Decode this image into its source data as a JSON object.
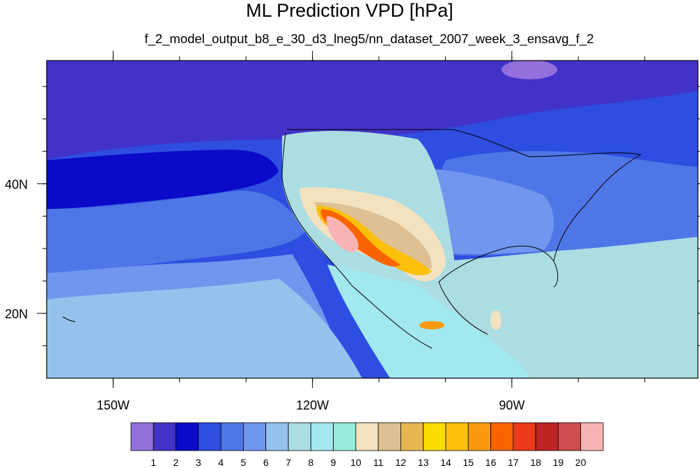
{
  "title": "ML Prediction VPD [hPa]",
  "subtitle": "f_2_model_output_b8_e_30_d3_lneg5/nn_dataset_2007_week_3_ensavg_f_2",
  "map": {
    "lon_range": [
      -160,
      -62
    ],
    "lat_range": [
      10,
      59
    ],
    "lon_ticks": [
      {
        "lon": -150,
        "label": "150W"
      },
      {
        "lon": -120,
        "label": "120W"
      },
      {
        "lon": -90,
        "label": "90W"
      }
    ],
    "lat_ticks": [
      {
        "lat": 40,
        "label": "40N"
      },
      {
        "lat": 20,
        "label": "20N"
      }
    ]
  },
  "colorbar": {
    "colors": [
      "#9370db",
      "#4232c8",
      "#0a0ac8",
      "#2d4ee0",
      "#4e76e6",
      "#7096ee",
      "#94c2ec",
      "#abdde3",
      "#a2e8ef",
      "#96ebda",
      "#f2e2c0",
      "#dec093",
      "#e6b650",
      "#fadc00",
      "#fcc00a",
      "#fb9a10",
      "#fa6400",
      "#ea3a1a",
      "#bd2424",
      "#d04e50",
      "#f8b4b4"
    ],
    "labels": [
      "1",
      "2",
      "3",
      "4",
      "5",
      "6",
      "7",
      "8",
      "9",
      "10",
      "11",
      "12",
      "13",
      "14",
      "15",
      "16",
      "17",
      "18",
      "19",
      "20"
    ]
  }
}
